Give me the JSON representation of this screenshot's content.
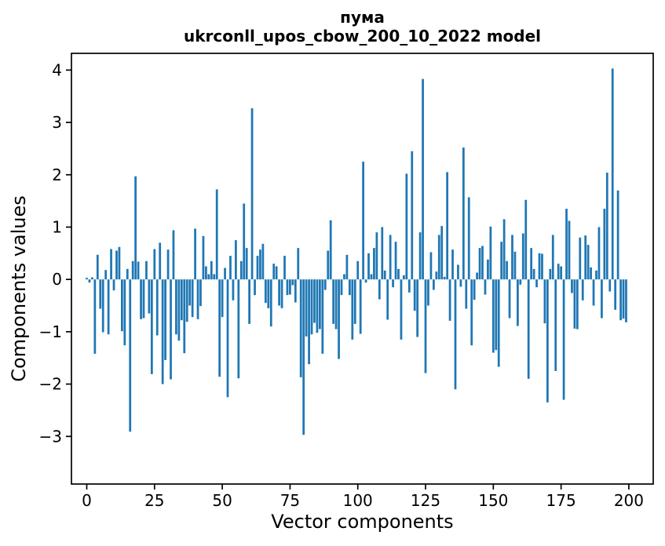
{
  "title": {
    "line1": "пума",
    "line2": "ukrconll_upos_cbow_200_10_2022 model"
  },
  "chart_data": {
    "type": "bar",
    "title": "пума",
    "subtitle": "ukrconll_upos_cbow_200_10_2022 model",
    "xlabel": "Vector components",
    "ylabel": "Components values",
    "legend": "none",
    "grid": false,
    "bar_color": "#1f77b4",
    "n_components": 200,
    "x_ticks": [
      0,
      25,
      50,
      75,
      100,
      125,
      150,
      175,
      200
    ],
    "y_ticks": [
      4,
      3,
      2,
      1,
      0,
      -1,
      -2,
      -3
    ],
    "xlim": [
      -5.65,
      209.0
    ],
    "ylim": [
      -3.91,
      4.32
    ],
    "values": [
      0.03,
      -0.06,
      0.04,
      -1.42,
      0.47,
      -0.56,
      -1.01,
      0.18,
      -1.05,
      0.58,
      -0.21,
      0.55,
      0.62,
      -0.99,
      -1.26,
      0.2,
      -2.91,
      0.35,
      1.97,
      0.34,
      -0.76,
      -0.74,
      0.35,
      -0.65,
      -1.81,
      0.58,
      -1.07,
      0.7,
      -2.0,
      -1.54,
      0.57,
      -1.91,
      0.94,
      -1.05,
      -1.17,
      -0.78,
      -1.41,
      -0.81,
      -0.5,
      -0.72,
      0.97,
      -0.76,
      -0.51,
      0.83,
      0.25,
      0.1,
      0.35,
      0.1,
      1.72,
      -1.86,
      -0.72,
      0.22,
      -2.25,
      0.45,
      -0.4,
      0.75,
      -1.89,
      0.35,
      1.45,
      0.6,
      -0.85,
      3.27,
      -0.3,
      0.45,
      0.57,
      0.68,
      -0.45,
      -0.55,
      -0.9,
      0.3,
      0.25,
      -0.5,
      -0.55,
      0.45,
      -0.3,
      -0.29,
      -0.11,
      -0.44,
      0.6,
      -1.87,
      -2.97,
      -1.09,
      -1.62,
      -1.05,
      -0.83,
      -1.02,
      -0.95,
      -1.42,
      -0.2,
      0.55,
      1.13,
      -0.85,
      -0.95,
      -1.52,
      -0.3,
      0.1,
      0.47,
      -0.3,
      -1.15,
      -0.85,
      0.35,
      -1.04,
      2.25,
      -0.06,
      0.5,
      0.1,
      0.6,
      0.9,
      -0.38,
      1.0,
      0.17,
      -0.77,
      0.85,
      -0.15,
      0.72,
      0.2,
      -1.15,
      0.08,
      2.02,
      -0.25,
      2.45,
      -0.6,
      -1.1,
      0.9,
      3.83,
      -1.79,
      -0.5,
      0.52,
      -0.2,
      0.15,
      0.85,
      1.02,
      0.05,
      2.05,
      -0.79,
      0.57,
      -2.1,
      0.28,
      -0.14,
      2.52,
      -0.56,
      1.57,
      -1.26,
      -0.39,
      0.13,
      0.6,
      0.64,
      -0.29,
      0.38,
      1.01,
      -1.4,
      -1.35,
      -1.67,
      0.72,
      1.15,
      0.35,
      -0.74,
      0.85,
      0.53,
      -0.89,
      -0.1,
      0.88,
      1.52,
      -1.9,
      0.6,
      0.2,
      -0.15,
      0.5,
      0.49,
      -0.84,
      -2.35,
      0.2,
      0.85,
      -1.75,
      0.3,
      0.25,
      -2.3,
      1.35,
      1.12,
      -0.26,
      -0.94,
      -0.95,
      0.8,
      -0.4,
      0.84,
      0.66,
      0.23,
      -0.5,
      0.17,
      1.0,
      -0.74,
      1.35,
      2.04,
      -0.23,
      4.03,
      -0.58,
      1.7,
      -0.78,
      -0.75,
      -0.82
    ]
  }
}
